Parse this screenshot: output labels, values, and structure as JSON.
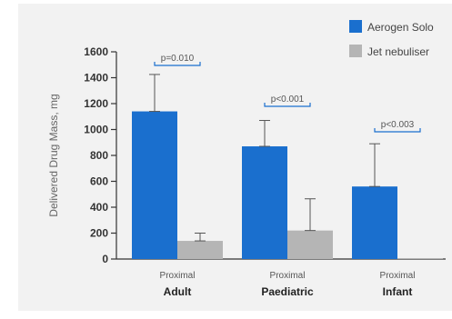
{
  "chart_data": {
    "type": "bar",
    "ylabel": "Delivered Drug Mass, mg",
    "ylim": [
      0,
      1600
    ],
    "yticks": [
      0,
      200,
      400,
      600,
      800,
      1000,
      1200,
      1400,
      1600
    ],
    "grid": false,
    "legend_position": "top-right",
    "categories": [
      {
        "sub": "Proximal",
        "main": "Adult"
      },
      {
        "sub": "Proximal",
        "main": "Paediatric"
      },
      {
        "sub": "Proximal",
        "main": "Infant"
      }
    ],
    "series": [
      {
        "name": "Aerogen Solo",
        "color": "#1a6fce",
        "values": [
          1140,
          870,
          560
        ],
        "error_upper": [
          1425,
          1070,
          890
        ]
      },
      {
        "name": "Jet nebuliser",
        "color": "#b5b5b5",
        "values": [
          140,
          220,
          5
        ],
        "error_upper": [
          200,
          465,
          5
        ]
      }
    ],
    "annotations": [
      {
        "category": "Adult",
        "text": "p=0.010"
      },
      {
        "category": "Paediatric",
        "text": "p<0.001"
      },
      {
        "category": "Infant",
        "text": "p<0.003"
      }
    ]
  }
}
